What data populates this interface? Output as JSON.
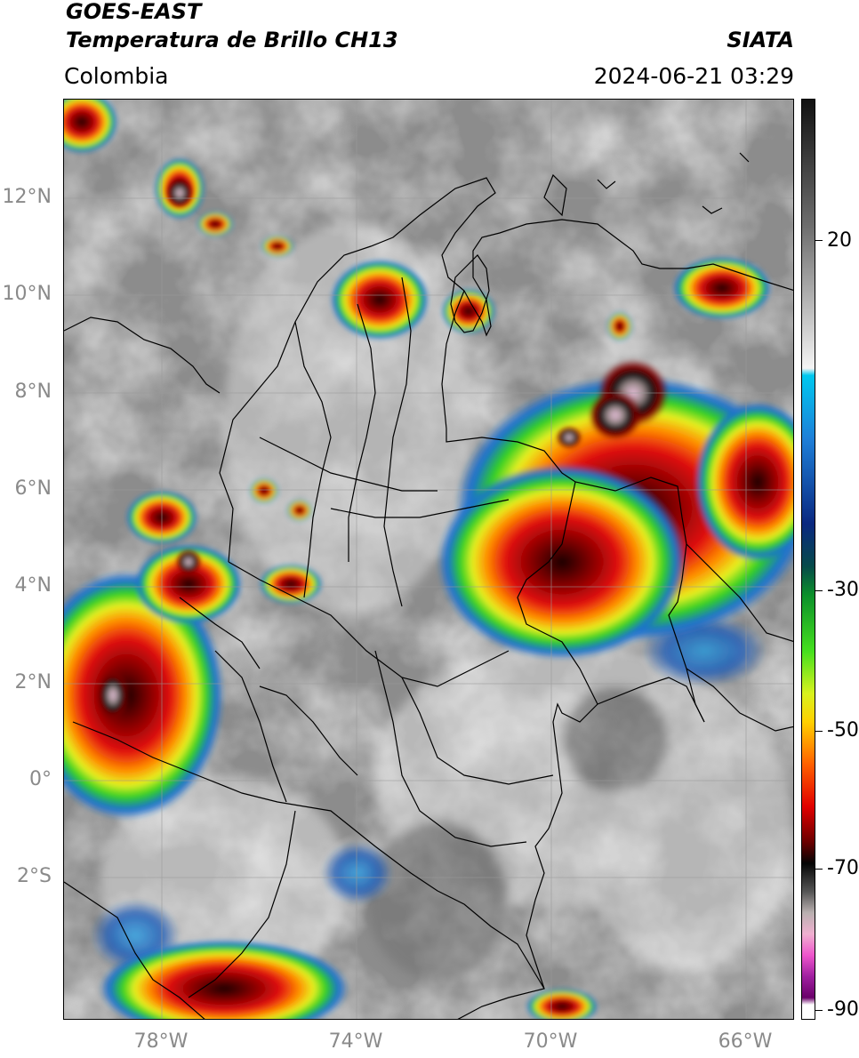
{
  "header": {
    "satellite": "GOES-EAST",
    "product": "Temperatura de Brillo CH13",
    "region": "Colombia",
    "agency": "SIATA",
    "datetime": "2024-06-21 03:29"
  },
  "axes": {
    "lat_labels": [
      "12°N",
      "10°N",
      "8°N",
      "6°N",
      "4°N",
      "2°N",
      "0°",
      "2°S"
    ],
    "lon_labels": [
      "78°W",
      "74°W",
      "70°W",
      "66°W"
    ]
  },
  "colorbar": {
    "tick_labels": [
      "20",
      "-30",
      "-50",
      "-70",
      "-90"
    ],
    "tick_values": [
      20,
      -30,
      -50,
      -70,
      -90
    ],
    "range": [
      -92,
      38
    ],
    "gradient_stops": [
      {
        "value": 38,
        "color": "#111111"
      },
      {
        "value": 20,
        "color": "#6e6e6e"
      },
      {
        "value": 0,
        "color": "#f4f4f4"
      },
      {
        "value": -1,
        "color": "#00c8ef"
      },
      {
        "value": -10,
        "color": "#1e7fd8"
      },
      {
        "value": -22,
        "color": "#0a2880"
      },
      {
        "value": -28,
        "color": "#064a4a"
      },
      {
        "value": -32,
        "color": "#0b8f2b"
      },
      {
        "value": -40,
        "color": "#45e01e"
      },
      {
        "value": -46,
        "color": "#d8f21e"
      },
      {
        "value": -50,
        "color": "#ffd000"
      },
      {
        "value": -56,
        "color": "#ff6000"
      },
      {
        "value": -62,
        "color": "#e00000"
      },
      {
        "value": -67,
        "color": "#6a0000"
      },
      {
        "value": -70,
        "color": "#050505"
      },
      {
        "value": -74,
        "color": "#555555"
      },
      {
        "value": -77,
        "color": "#b9b0b0"
      },
      {
        "value": -80,
        "color": "#f0b0d0"
      },
      {
        "value": -83,
        "color": "#ee55cc"
      },
      {
        "value": -86,
        "color": "#a020a0"
      },
      {
        "value": -89,
        "color": "#6a006a"
      },
      {
        "value": -90,
        "color": "#ffffff"
      },
      {
        "value": -92,
        "color": "#ffffff"
      }
    ]
  }
}
